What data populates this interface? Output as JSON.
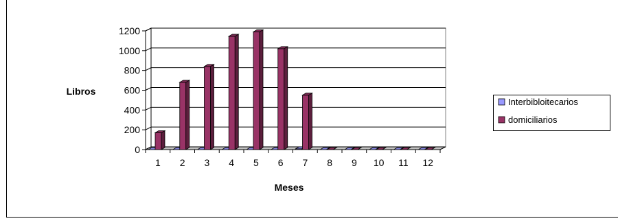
{
  "chart_data": {
    "type": "bar",
    "title": "",
    "xlabel": "Meses",
    "ylabel": "Libros",
    "ylim": [
      0,
      1200
    ],
    "yticks": [
      "0",
      "200",
      "400",
      "600",
      "800",
      "1000",
      "1200"
    ],
    "categories": [
      "1",
      "2",
      "3",
      "4",
      "5",
      "6",
      "7",
      "8",
      "9",
      "10",
      "11",
      "12"
    ],
    "series": [
      {
        "name": "Interbibloitecarios",
        "color": "#9999ff",
        "values": [
          0,
          0,
          0,
          0,
          0,
          0,
          8,
          0,
          0,
          0,
          0,
          0
        ]
      },
      {
        "name": "domiciliarios",
        "color": "#993366",
        "values": [
          170,
          680,
          840,
          1145,
          1190,
          1020,
          550,
          0,
          0,
          0,
          0,
          0
        ]
      }
    ],
    "grid": true,
    "style": "3d-column",
    "legend_position": "right"
  }
}
